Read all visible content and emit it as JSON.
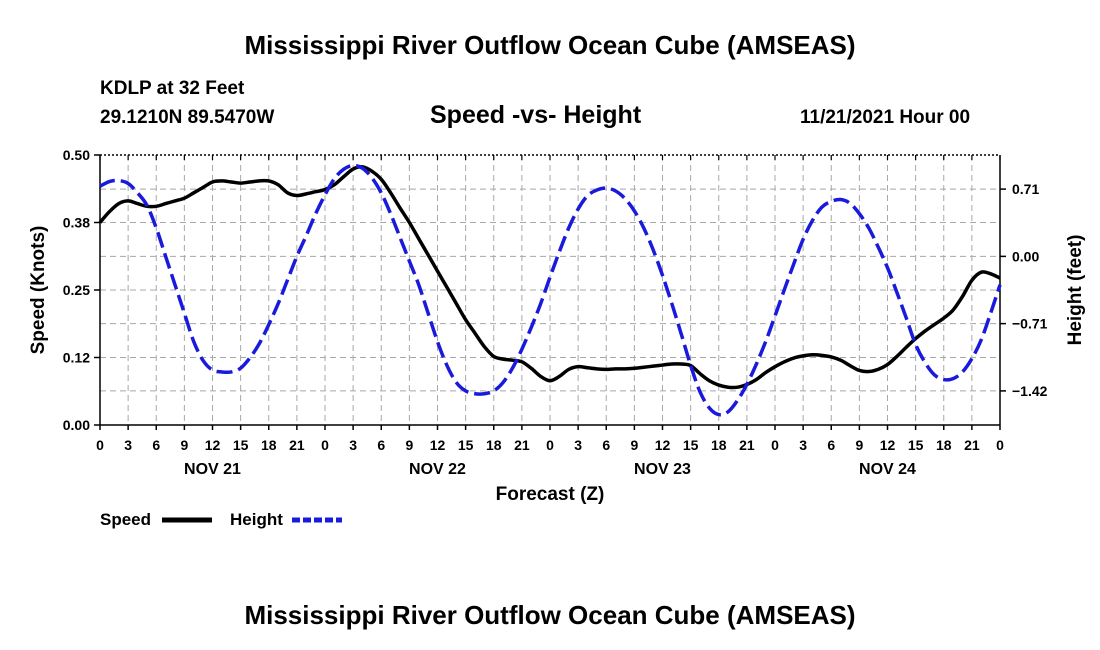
{
  "page": {
    "title_top": "Mississippi River Outflow Ocean Cube (AMSEAS)",
    "title_bottom": "Mississippi River Outflow Ocean Cube (AMSEAS)",
    "station": "KDLP at 32 Feet",
    "coords": "29.1210N  89.5470W",
    "subtitle": "Speed -vs- Height",
    "datetime": "11/21/2021 Hour 00"
  },
  "chart_data": {
    "type": "line",
    "xlabel": "Forecast (Z)",
    "ylabel_left": "Speed (Knots)",
    "ylabel_right": "Height (feet)",
    "x_range_hours": [
      0,
      96
    ],
    "y_left_range": [
      0,
      0.5
    ],
    "y_right_range": [
      -1.78,
      1.07
    ],
    "y_left_ticks": [
      "0.00",
      "0.12",
      "0.25",
      "0.38",
      "0.50"
    ],
    "y_left_tick_values": [
      0,
      0.125,
      0.25,
      0.375,
      0.5
    ],
    "y_right_ticks": [
      "0.71",
      "0.00",
      "−0.71",
      "−1.42"
    ],
    "y_right_tick_values": [
      0.71,
      0.0,
      -0.71,
      -1.42
    ],
    "x_tick_labels": [
      "0",
      "3",
      "6",
      "9",
      "12",
      "15",
      "18",
      "21",
      "0",
      "3",
      "6",
      "9",
      "12",
      "15",
      "18",
      "21",
      "0",
      "3",
      "6",
      "9",
      "12",
      "15",
      "18",
      "21",
      "0",
      "3",
      "6",
      "9",
      "12",
      "15",
      "18",
      "21",
      "0"
    ],
    "day_labels": [
      "NOV 21",
      "NOV 22",
      "NOV 23",
      "NOV 24"
    ],
    "grid": true,
    "legend": [
      "Speed",
      "Height"
    ],
    "series": [
      {
        "name": "Speed",
        "color": "#000000",
        "style": "solid",
        "axis": "left",
        "x": [
          0,
          1,
          2,
          3,
          4,
          5,
          6,
          7,
          8,
          9,
          10,
          11,
          12,
          13,
          14,
          15,
          16,
          17,
          18,
          19,
          20,
          21,
          22,
          23,
          24,
          25,
          26,
          27,
          28,
          29,
          30,
          31,
          32,
          33,
          34,
          35,
          36,
          37,
          38,
          39,
          40,
          41,
          42,
          43,
          44,
          45,
          46,
          47,
          48,
          49,
          50,
          51,
          52,
          53,
          54,
          55,
          56,
          57,
          58,
          59,
          60,
          61,
          62,
          63,
          64,
          65,
          66,
          67,
          68,
          69,
          70,
          71,
          72,
          73,
          74,
          75,
          76,
          77,
          78,
          79,
          80,
          81,
          82,
          83,
          84,
          85,
          86,
          87,
          88,
          89,
          90,
          91,
          92,
          93,
          94,
          95,
          96
        ],
        "values": [
          0.375,
          0.395,
          0.41,
          0.415,
          0.41,
          0.405,
          0.405,
          0.41,
          0.415,
          0.42,
          0.43,
          0.44,
          0.45,
          0.452,
          0.45,
          0.448,
          0.45,
          0.452,
          0.452,
          0.445,
          0.43,
          0.425,
          0.428,
          0.432,
          0.436,
          0.445,
          0.46,
          0.474,
          0.478,
          0.47,
          0.455,
          0.43,
          0.402,
          0.375,
          0.345,
          0.315,
          0.285,
          0.255,
          0.225,
          0.195,
          0.17,
          0.145,
          0.127,
          0.122,
          0.12,
          0.117,
          0.105,
          0.09,
          0.082,
          0.09,
          0.103,
          0.108,
          0.106,
          0.104,
          0.103,
          0.104,
          0.104,
          0.105,
          0.107,
          0.109,
          0.111,
          0.113,
          0.113,
          0.11,
          0.095,
          0.082,
          0.074,
          0.07,
          0.07,
          0.075,
          0.084,
          0.097,
          0.108,
          0.117,
          0.124,
          0.128,
          0.13,
          0.129,
          0.126,
          0.12,
          0.11,
          0.101,
          0.099,
          0.103,
          0.112,
          0.127,
          0.144,
          0.16,
          0.174,
          0.186,
          0.198,
          0.213,
          0.238,
          0.268,
          0.283,
          0.28,
          0.272
        ]
      },
      {
        "name": "Height",
        "color": "#1a1adc",
        "style": "dashed",
        "axis": "right",
        "x": [
          0,
          1,
          2,
          3,
          4,
          5,
          6,
          7,
          8,
          9,
          10,
          11,
          12,
          13,
          14,
          15,
          16,
          17,
          18,
          19,
          20,
          21,
          22,
          23,
          24,
          25,
          26,
          27,
          28,
          29,
          30,
          31,
          32,
          33,
          34,
          35,
          36,
          37,
          38,
          39,
          40,
          41,
          42,
          43,
          44,
          45,
          46,
          47,
          48,
          49,
          50,
          51,
          52,
          53,
          54,
          55,
          56,
          57,
          58,
          59,
          60,
          61,
          62,
          63,
          64,
          65,
          66,
          67,
          68,
          69,
          70,
          71,
          72,
          73,
          74,
          75,
          76,
          77,
          78,
          79,
          80,
          81,
          82,
          83,
          84,
          85,
          86,
          87,
          88,
          89,
          90,
          91,
          92,
          93,
          94,
          95,
          96
        ],
        "values": [
          0.74,
          0.79,
          0.8,
          0.77,
          0.67,
          0.54,
          0.3,
          0.0,
          -0.3,
          -0.6,
          -0.9,
          -1.1,
          -1.2,
          -1.22,
          -1.22,
          -1.18,
          -1.07,
          -0.92,
          -0.72,
          -0.5,
          -0.25,
          0.0,
          0.22,
          0.45,
          0.65,
          0.82,
          0.92,
          0.96,
          0.93,
          0.83,
          0.67,
          0.45,
          0.2,
          -0.05,
          -0.3,
          -0.6,
          -0.9,
          -1.15,
          -1.33,
          -1.42,
          -1.45,
          -1.45,
          -1.42,
          -1.33,
          -1.18,
          -0.98,
          -0.75,
          -0.5,
          -0.22,
          0.05,
          0.3,
          0.5,
          0.64,
          0.7,
          0.72,
          0.69,
          0.61,
          0.48,
          0.3,
          0.07,
          -0.2,
          -0.5,
          -0.82,
          -1.15,
          -1.43,
          -1.6,
          -1.67,
          -1.64,
          -1.52,
          -1.35,
          -1.14,
          -0.9,
          -0.63,
          -0.35,
          -0.08,
          0.18,
          0.38,
          0.52,
          0.58,
          0.6,
          0.56,
          0.45,
          0.3,
          0.1,
          -0.12,
          -0.38,
          -0.65,
          -0.93,
          -1.12,
          -1.25,
          -1.3,
          -1.29,
          -1.22,
          -1.08,
          -0.88,
          -0.6,
          -0.3
        ]
      }
    ]
  }
}
